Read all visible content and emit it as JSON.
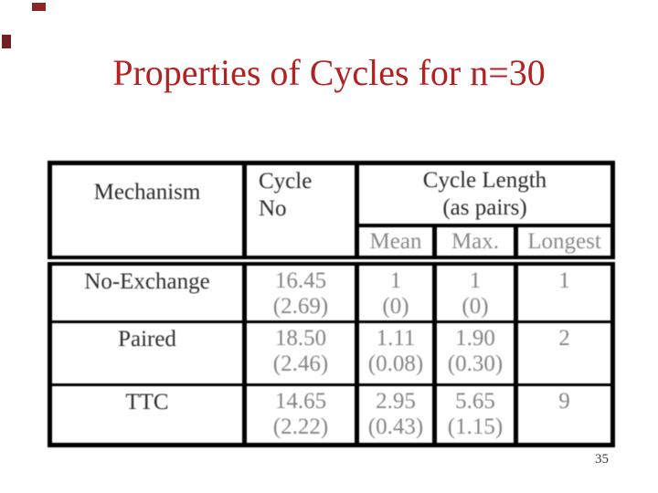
{
  "slide": {
    "title": "Properties of Cycles for n=30",
    "title_color": "#B22222",
    "background_color": "#FFFFFF",
    "page_number": "35",
    "page_number_color": "#3A3A3A"
  },
  "decor": {
    "top_square_color": "#8B2626",
    "left_square_color": "#702020"
  },
  "table": {
    "border_color": "#000000",
    "header_color": "#2B2B2B",
    "subheader_color": "#8A8A8A",
    "row_label_color": "#2E2E2E",
    "value_color": "#848484",
    "columns": {
      "mechanism": "Mechanism",
      "cycle_no_line1": "Cycle",
      "cycle_no_line2": "No",
      "cycle_length_line1": "Cycle Length",
      "cycle_length_line2": "(as pairs)",
      "sub": [
        "Mean",
        "Max.",
        "Longest"
      ]
    },
    "rows": [
      {
        "mechanism": "No-Exchange",
        "cycle_no": "16.45",
        "cycle_no_sd": "(2.69)",
        "mean": "1",
        "mean_sd": "(0)",
        "max": "1",
        "max_sd": "(0)",
        "longest": "1"
      },
      {
        "mechanism": "Paired",
        "cycle_no": "18.50",
        "cycle_no_sd": "(2.46)",
        "mean": "1.11",
        "mean_sd": "(0.08)",
        "max": "1.90",
        "max_sd": "(0.30)",
        "longest": "2"
      },
      {
        "mechanism": "TTC",
        "cycle_no": "14.65",
        "cycle_no_sd": "(2.22)",
        "mean": "2.95",
        "mean_sd": "(0.43)",
        "max": "5.65",
        "max_sd": "(1.15)",
        "longest": "9"
      }
    ]
  }
}
